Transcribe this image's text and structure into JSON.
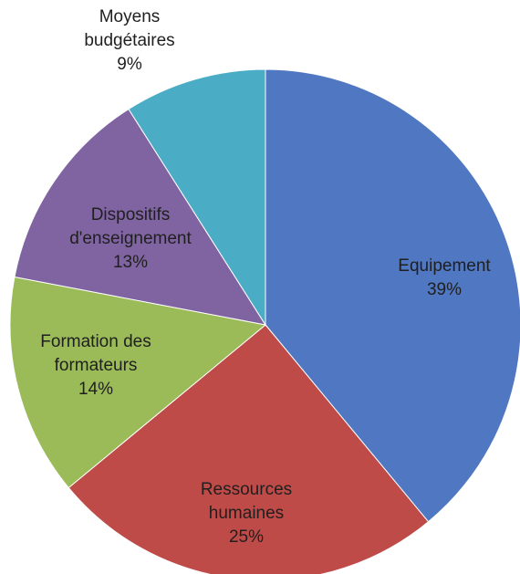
{
  "chart_data": {
    "type": "pie",
    "title": "",
    "slices": [
      {
        "lines": [
          "Equipement"
        ],
        "pct_label": "39%",
        "value": 39,
        "color": "#4F77C2"
      },
      {
        "lines": [
          "Ressources",
          "humaines"
        ],
        "pct_label": "25%",
        "value": 25,
        "color": "#BE4B48"
      },
      {
        "lines": [
          "Formation des",
          "formateurs"
        ],
        "pct_label": "14%",
        "value": 14,
        "color": "#9BBB59"
      },
      {
        "lines": [
          "Dispositifs",
          "d'enseignement"
        ],
        "pct_label": "13%",
        "value": 13,
        "color": "#8064A2"
      },
      {
        "lines": [
          "Moyens",
          "budgétaires"
        ],
        "pct_label": "9%",
        "value": 9,
        "color": "#4BACC6"
      }
    ],
    "start_direction": "top",
    "direction": "clockwise",
    "legend": "none"
  }
}
